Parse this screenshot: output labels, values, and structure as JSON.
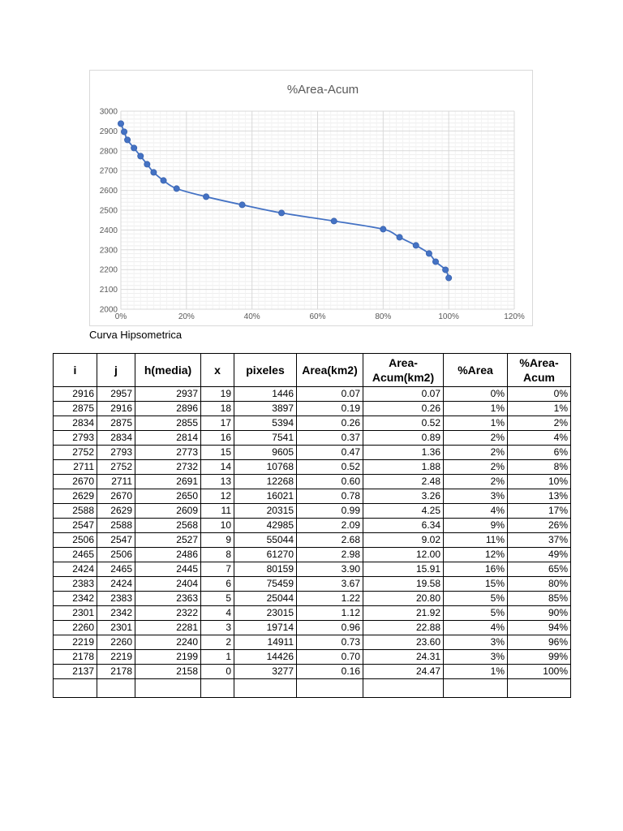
{
  "chart_data": {
    "type": "scatter",
    "title": "%Area-Acum",
    "xlim": [
      0,
      1.2
    ],
    "ylim": [
      2000,
      3000
    ],
    "x_ticks": [
      "0%",
      "20%",
      "40%",
      "60%",
      "80%",
      "100%",
      "120%"
    ],
    "y_ticks": [
      "2000",
      "2100",
      "2200",
      "2300",
      "2400",
      "2500",
      "2600",
      "2700",
      "2800",
      "2900",
      "3000"
    ],
    "grid": true,
    "smooth_line": true,
    "color": "#4472C4",
    "points": [
      [
        0.0,
        2937
      ],
      [
        0.01,
        2896
      ],
      [
        0.02,
        2855
      ],
      [
        0.04,
        2814
      ],
      [
        0.06,
        2773
      ],
      [
        0.08,
        2732
      ],
      [
        0.1,
        2691
      ],
      [
        0.13,
        2650
      ],
      [
        0.17,
        2609
      ],
      [
        0.26,
        2568
      ],
      [
        0.37,
        2527
      ],
      [
        0.49,
        2486
      ],
      [
        0.65,
        2445
      ],
      [
        0.8,
        2404
      ],
      [
        0.85,
        2363
      ],
      [
        0.9,
        2322
      ],
      [
        0.94,
        2281
      ],
      [
        0.96,
        2240
      ],
      [
        0.99,
        2199
      ],
      [
        1.0,
        2158
      ]
    ]
  },
  "caption": "Curva Hipsometrica",
  "table": {
    "headers": [
      "i",
      "j",
      "h(media)",
      "x",
      "pixeles",
      "Area(km2)",
      "Area-Acum(km2)",
      "%Area",
      "%Area-Acum"
    ],
    "rows": [
      [
        "2916",
        "2957",
        "2937",
        "19",
        "1446",
        "0.07",
        "0.07",
        "0%",
        "0%"
      ],
      [
        "2875",
        "2916",
        "2896",
        "18",
        "3897",
        "0.19",
        "0.26",
        "1%",
        "1%"
      ],
      [
        "2834",
        "2875",
        "2855",
        "17",
        "5394",
        "0.26",
        "0.52",
        "1%",
        "2%"
      ],
      [
        "2793",
        "2834",
        "2814",
        "16",
        "7541",
        "0.37",
        "0.89",
        "2%",
        "4%"
      ],
      [
        "2752",
        "2793",
        "2773",
        "15",
        "9605",
        "0.47",
        "1.36",
        "2%",
        "6%"
      ],
      [
        "2711",
        "2752",
        "2732",
        "14",
        "10768",
        "0.52",
        "1.88",
        "2%",
        "8%"
      ],
      [
        "2670",
        "2711",
        "2691",
        "13",
        "12268",
        "0.60",
        "2.48",
        "2%",
        "10%"
      ],
      [
        "2629",
        "2670",
        "2650",
        "12",
        "16021",
        "0.78",
        "3.26",
        "3%",
        "13%"
      ],
      [
        "2588",
        "2629",
        "2609",
        "11",
        "20315",
        "0.99",
        "4.25",
        "4%",
        "17%"
      ],
      [
        "2547",
        "2588",
        "2568",
        "10",
        "42985",
        "2.09",
        "6.34",
        "9%",
        "26%"
      ],
      [
        "2506",
        "2547",
        "2527",
        "9",
        "55044",
        "2.68",
        "9.02",
        "11%",
        "37%"
      ],
      [
        "2465",
        "2506",
        "2486",
        "8",
        "61270",
        "2.98",
        "12.00",
        "12%",
        "49%"
      ],
      [
        "2424",
        "2465",
        "2445",
        "7",
        "80159",
        "3.90",
        "15.91",
        "16%",
        "65%"
      ],
      [
        "2383",
        "2424",
        "2404",
        "6",
        "75459",
        "3.67",
        "19.58",
        "15%",
        "80%"
      ],
      [
        "2342",
        "2383",
        "2363",
        "5",
        "25044",
        "1.22",
        "20.80",
        "5%",
        "85%"
      ],
      [
        "2301",
        "2342",
        "2322",
        "4",
        "23015",
        "1.12",
        "21.92",
        "5%",
        "90%"
      ],
      [
        "2260",
        "2301",
        "2281",
        "3",
        "19714",
        "0.96",
        "22.88",
        "4%",
        "94%"
      ],
      [
        "2219",
        "2260",
        "2240",
        "2",
        "14911",
        "0.73",
        "23.60",
        "3%",
        "96%"
      ],
      [
        "2178",
        "2219",
        "2199",
        "1",
        "14426",
        "0.70",
        "24.31",
        "3%",
        "99%"
      ],
      [
        "2137",
        "2178",
        "2158",
        "0",
        "3277",
        "0.16",
        "24.47",
        "1%",
        "100%"
      ]
    ]
  }
}
